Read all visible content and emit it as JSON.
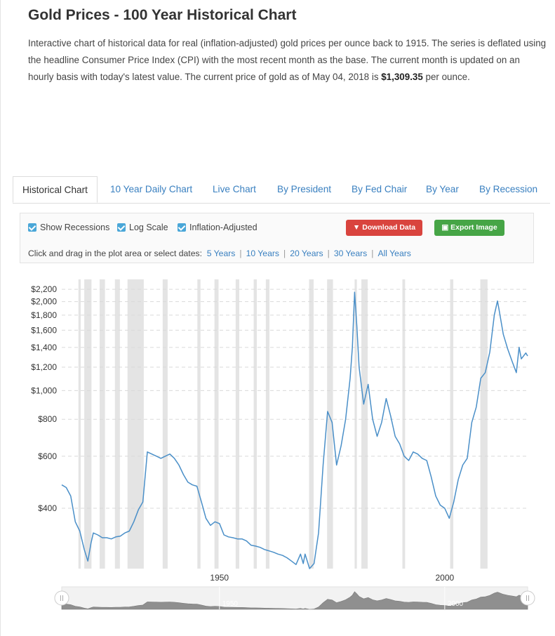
{
  "page": {
    "title": "Gold Prices - 100 Year Historical Chart",
    "intro_text": "Interactive chart of historical data for real (inflation-adjusted) gold prices per ounce back to 1915. The series is deflated using the headline Consumer Price Index (CPI) with the most recent month as the base. The current month is updated on an hourly basis with today's latest value. The current price of gold as of May 04, 2018 is ",
    "intro_price": "$1,309.35",
    "intro_suffix": " per ounce."
  },
  "tabs": [
    {
      "label": "Historical Chart",
      "active": true
    },
    {
      "label": "10 Year Daily Chart",
      "active": false
    },
    {
      "label": "Live Chart",
      "active": false
    },
    {
      "label": "By President",
      "active": false
    },
    {
      "label": "By Fed Chair",
      "active": false
    },
    {
      "label": "By Year",
      "active": false
    },
    {
      "label": "By Recession",
      "active": false
    }
  ],
  "controls": {
    "show_recessions": "Show Recessions",
    "log_scale": "Log Scale",
    "inflation_adjusted": "Inflation-Adjusted",
    "download_button": "Download Data",
    "export_button": "Export Image",
    "range_prompt": "Click and drag in the plot area or select dates:",
    "ranges": [
      "5 Years",
      "10 Years",
      "20 Years",
      "30 Years",
      "All Years"
    ]
  },
  "colors": {
    "line": "#4a8fc8",
    "recession": "#e4e4e4",
    "download": "#d9443e",
    "export": "#46a546",
    "link": "#3a80c0",
    "checkbox": "#4aa7d8"
  },
  "chart_data": {
    "type": "line",
    "y_scale": "log",
    "ylim": [
      250,
      2300
    ],
    "xlim": [
      1915,
      2018.4
    ],
    "y_ticks": [
      400,
      600,
      800,
      1000,
      1200,
      1400,
      1600,
      1800,
      2000,
      2200
    ],
    "y_tick_labels": [
      "$400",
      "$600",
      "$800",
      "$1,000",
      "$1,200",
      "$1,400",
      "$1,600",
      "$1,800",
      "$2,000",
      "$2,200"
    ],
    "x_ticks": [
      1950,
      2000
    ],
    "x_tick_labels": [
      "1950",
      "2000"
    ],
    "navigator_labels": [
      "1950",
      "2000"
    ],
    "grid": "horizontal dashed",
    "recessions": [
      [
        1918.7,
        1919.2
      ],
      [
        1920.0,
        1921.6
      ],
      [
        1923.4,
        1924.6
      ],
      [
        1926.8,
        1927.9
      ],
      [
        1929.6,
        1933.2
      ],
      [
        1937.4,
        1938.5
      ],
      [
        1945.1,
        1945.8
      ],
      [
        1948.9,
        1949.8
      ],
      [
        1953.6,
        1954.4
      ],
      [
        1957.6,
        1958.3
      ],
      [
        1960.3,
        1961.1
      ],
      [
        1969.9,
        1970.9
      ],
      [
        1973.9,
        1975.2
      ],
      [
        1980.0,
        1980.5
      ],
      [
        1981.5,
        1982.9
      ],
      [
        1990.6,
        1991.2
      ],
      [
        2001.2,
        2001.9
      ],
      [
        2007.9,
        2009.5
      ]
    ],
    "series": [
      {
        "values": [
          [
            1915,
            480
          ],
          [
            1916,
            470
          ],
          [
            1917,
            440
          ],
          [
            1918,
            360
          ],
          [
            1919,
            335
          ],
          [
            1920,
            290
          ],
          [
            1920.8,
            265
          ],
          [
            1921.5,
            305
          ],
          [
            1922,
            330
          ],
          [
            1923,
            325
          ],
          [
            1924,
            318
          ],
          [
            1925,
            318
          ],
          [
            1926,
            315
          ],
          [
            1927,
            320
          ],
          [
            1928,
            322
          ],
          [
            1929,
            330
          ],
          [
            1930,
            335
          ],
          [
            1931,
            360
          ],
          [
            1932,
            395
          ],
          [
            1933,
            420
          ],
          [
            1934,
            620
          ],
          [
            1935,
            610
          ],
          [
            1936,
            600
          ],
          [
            1937,
            590
          ],
          [
            1938,
            600
          ],
          [
            1939,
            610
          ],
          [
            1940,
            590
          ],
          [
            1941,
            560
          ],
          [
            1942,
            520
          ],
          [
            1943,
            490
          ],
          [
            1944,
            480
          ],
          [
            1945,
            475
          ],
          [
            1946,
            420
          ],
          [
            1947,
            370
          ],
          [
            1948,
            350
          ],
          [
            1949,
            360
          ],
          [
            1950,
            355
          ],
          [
            1951,
            325
          ],
          [
            1952,
            320
          ],
          [
            1953,
            318
          ],
          [
            1954,
            315
          ],
          [
            1955,
            315
          ],
          [
            1956,
            310
          ],
          [
            1957,
            300
          ],
          [
            1958,
            298
          ],
          [
            1959,
            295
          ],
          [
            1960,
            290
          ],
          [
            1961,
            287
          ],
          [
            1962,
            284
          ],
          [
            1963,
            280
          ],
          [
            1964,
            277
          ],
          [
            1965,
            272
          ],
          [
            1966,
            265
          ],
          [
            1967,
            258
          ],
          [
            1968,
            280
          ],
          [
            1968.6,
            260
          ],
          [
            1969,
            280
          ],
          [
            1970,
            250
          ],
          [
            1971,
            260
          ],
          [
            1972,
            330
          ],
          [
            1973,
            560
          ],
          [
            1974,
            850
          ],
          [
            1975,
            780
          ],
          [
            1976,
            560
          ],
          [
            1977,
            650
          ],
          [
            1978,
            800
          ],
          [
            1979,
            1100
          ],
          [
            1979.5,
            1400
          ],
          [
            1980.0,
            2150
          ],
          [
            1980.5,
            1650
          ],
          [
            1981,
            1200
          ],
          [
            1982,
            900
          ],
          [
            1983,
            1050
          ],
          [
            1984,
            800
          ],
          [
            1985,
            700
          ],
          [
            1986,
            780
          ],
          [
            1987,
            940
          ],
          [
            1988,
            820
          ],
          [
            1989,
            700
          ],
          [
            1990,
            660
          ],
          [
            1991,
            600
          ],
          [
            1992,
            580
          ],
          [
            1993,
            620
          ],
          [
            1994,
            610
          ],
          [
            1995,
            590
          ],
          [
            1996,
            580
          ],
          [
            1997,
            510
          ],
          [
            1998,
            440
          ],
          [
            1999,
            410
          ],
          [
            2000,
            400
          ],
          [
            2001,
            370
          ],
          [
            2002,
            420
          ],
          [
            2003,
            500
          ],
          [
            2004,
            560
          ],
          [
            2005,
            590
          ],
          [
            2006,
            780
          ],
          [
            2007,
            880
          ],
          [
            2008,
            1100
          ],
          [
            2009,
            1150
          ],
          [
            2010,
            1350
          ],
          [
            2011,
            1800
          ],
          [
            2011.7,
            2010
          ],
          [
            2012,
            1900
          ],
          [
            2013,
            1550
          ],
          [
            2014,
            1380
          ],
          [
            2015,
            1250
          ],
          [
            2015.9,
            1150
          ],
          [
            2016.5,
            1400
          ],
          [
            2017,
            1280
          ],
          [
            2018,
            1340
          ],
          [
            2018.4,
            1309
          ]
        ]
      }
    ]
  }
}
